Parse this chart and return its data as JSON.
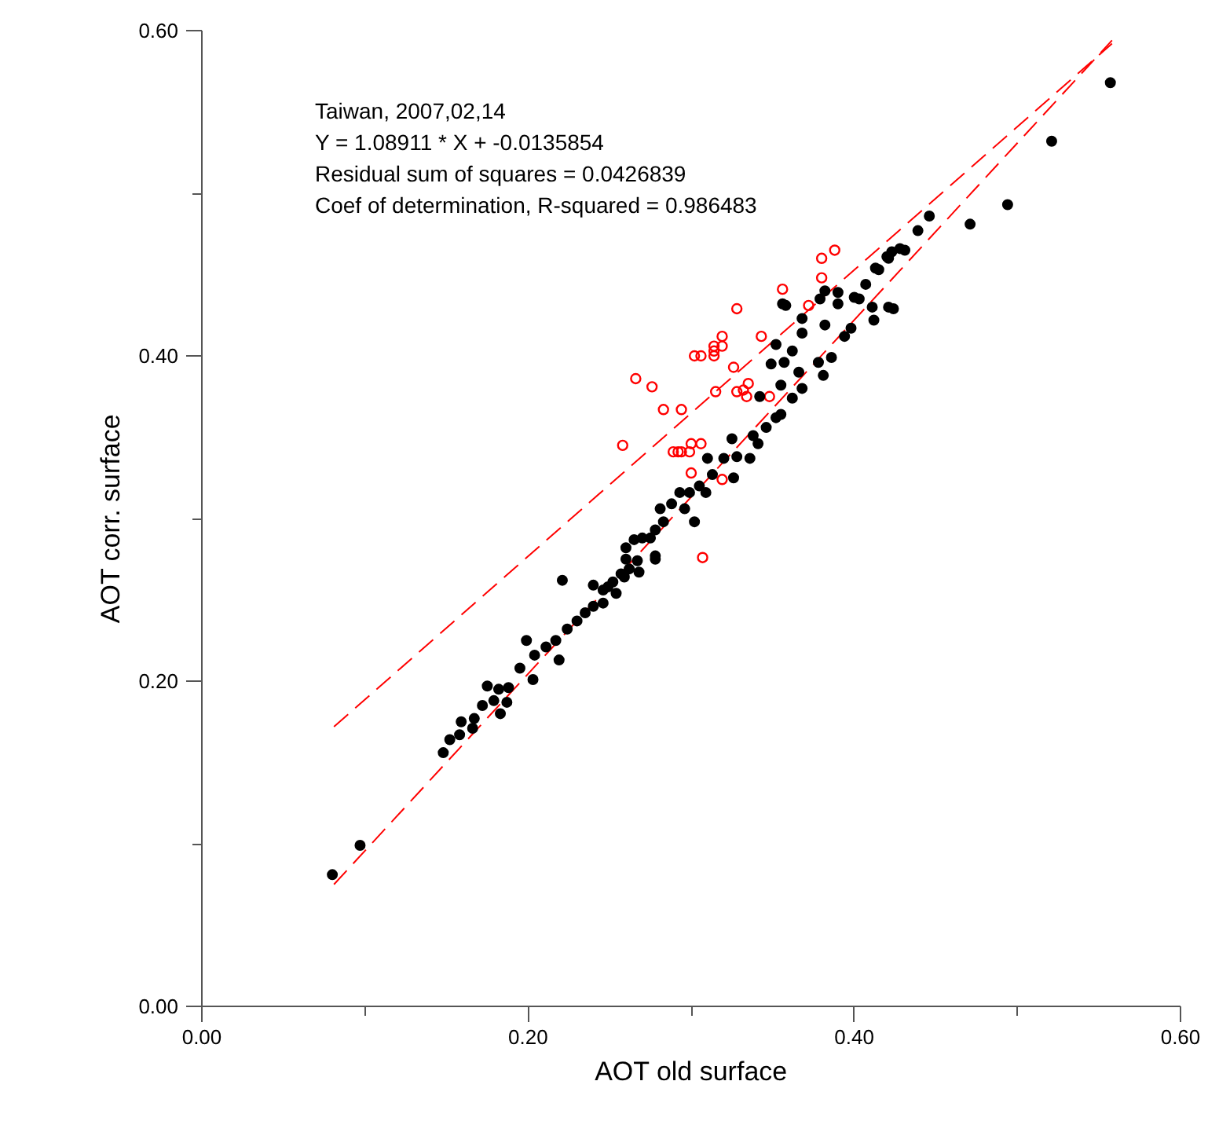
{
  "chart_data": {
    "type": "scatter",
    "xlabel": "AOT old surface",
    "ylabel": "AOT corr. surface",
    "annotations": [
      "Taiwan, 2007,02,14",
      "Y = 1.08911 * X + -0.0135854",
      "Residual sum of squares = 0.0426839",
      "Coef of determination, R-squared = 0.986483"
    ],
    "xlim": [
      0,
      0.6
    ],
    "ylim": [
      0,
      0.6
    ],
    "xticks": [
      {
        "value": 0,
        "label": "0.00"
      },
      {
        "value": 0.1,
        "label": null
      },
      {
        "value": 0.2,
        "label": "0.20"
      },
      {
        "value": 0.3,
        "label": null
      },
      {
        "value": 0.4,
        "label": "0.40"
      },
      {
        "value": 0.5,
        "label": null
      },
      {
        "value": 0.6,
        "label": "0.60"
      }
    ],
    "yticks": [
      {
        "value": 0,
        "label": "0.00"
      },
      {
        "value": 0.1,
        "label": null
      },
      {
        "value": 0.2,
        "label": "0.20"
      },
      {
        "value": 0.3,
        "label": null
      },
      {
        "value": 0.4,
        "label": "0.40"
      },
      {
        "value": 0.5,
        "label": null
      },
      {
        "value": 0.6,
        "label": "0.60"
      }
    ],
    "grid": false,
    "series": [
      {
        "type": "line",
        "color": "#ff0000",
        "line_style": "dashed",
        "marker": "none",
        "x": [
          0.081,
          0.558
        ],
        "values": [
          0.172,
          0.592
        ]
      },
      {
        "type": "line",
        "color": "#ff0000",
        "line_style": "dashed",
        "marker": "none",
        "x": [
          0.081,
          0.558
        ],
        "values": [
          0.075,
          0.594
        ]
      },
      {
        "color": "#ff0000",
        "marker": "circle_open",
        "x": [
          0.388,
          0.38,
          0.38,
          0.356,
          0.328,
          0.372,
          0.343,
          0.319,
          0.314,
          0.319,
          0.314,
          0.314,
          0.302,
          0.306,
          0.266,
          0.276,
          0.326,
          0.315,
          0.328,
          0.332,
          0.335,
          0.334,
          0.348,
          0.283,
          0.294,
          0.258,
          0.3,
          0.306,
          0.289,
          0.292,
          0.294,
          0.299,
          0.3,
          0.319,
          0.307
        ],
        "values": [
          0.465,
          0.46,
          0.448,
          0.441,
          0.429,
          0.431,
          0.412,
          0.412,
          0.406,
          0.406,
          0.403,
          0.4,
          0.4,
          0.4,
          0.386,
          0.381,
          0.393,
          0.378,
          0.378,
          0.379,
          0.383,
          0.375,
          0.375,
          0.367,
          0.367,
          0.345,
          0.346,
          0.346,
          0.341,
          0.341,
          0.341,
          0.341,
          0.328,
          0.324,
          0.276
        ]
      },
      {
        "color": "#000000",
        "marker": "circle",
        "x": [
          0.557,
          0.521,
          0.494,
          0.471,
          0.446,
          0.439,
          0.431,
          0.423,
          0.421,
          0.415,
          0.424,
          0.411,
          0.403,
          0.382,
          0.39,
          0.358,
          0.428,
          0.42,
          0.413,
          0.421,
          0.412,
          0.4,
          0.407,
          0.39,
          0.379,
          0.368,
          0.356,
          0.368,
          0.382,
          0.394,
          0.398,
          0.386,
          0.378,
          0.352,
          0.357,
          0.349,
          0.362,
          0.381,
          0.366,
          0.355,
          0.368,
          0.362,
          0.342,
          0.355,
          0.352,
          0.346,
          0.338,
          0.341,
          0.325,
          0.336,
          0.328,
          0.32,
          0.31,
          0.326,
          0.313,
          0.305,
          0.309,
          0.299,
          0.293,
          0.302,
          0.296,
          0.288,
          0.281,
          0.283,
          0.278,
          0.275,
          0.27,
          0.265,
          0.26,
          0.278,
          0.267,
          0.262,
          0.257,
          0.252,
          0.221,
          0.24,
          0.246,
          0.08,
          0.097,
          0.148,
          0.152,
          0.158,
          0.159,
          0.166,
          0.167,
          0.175,
          0.172,
          0.179,
          0.183,
          0.182,
          0.187,
          0.188,
          0.195,
          0.199,
          0.203,
          0.204,
          0.211,
          0.217,
          0.219,
          0.224,
          0.23,
          0.235,
          0.24,
          0.246,
          0.249,
          0.254,
          0.259,
          0.26,
          0.268,
          0.278
        ],
        "values": [
          0.568,
          0.532,
          0.493,
          0.481,
          0.486,
          0.477,
          0.465,
          0.464,
          0.46,
          0.453,
          0.429,
          0.43,
          0.435,
          0.44,
          0.439,
          0.431,
          0.466,
          0.461,
          0.454,
          0.43,
          0.422,
          0.436,
          0.444,
          0.432,
          0.435,
          0.423,
          0.432,
          0.414,
          0.419,
          0.412,
          0.417,
          0.399,
          0.396,
          0.407,
          0.396,
          0.395,
          0.403,
          0.388,
          0.39,
          0.382,
          0.38,
          0.374,
          0.375,
          0.364,
          0.362,
          0.356,
          0.351,
          0.346,
          0.349,
          0.337,
          0.338,
          0.337,
          0.337,
          0.325,
          0.327,
          0.32,
          0.316,
          0.316,
          0.316,
          0.298,
          0.306,
          0.309,
          0.306,
          0.298,
          0.293,
          0.288,
          0.288,
          0.287,
          0.282,
          0.277,
          0.274,
          0.269,
          0.266,
          0.261,
          0.262,
          0.259,
          0.256,
          0.081,
          0.099,
          0.156,
          0.164,
          0.167,
          0.175,
          0.171,
          0.177,
          0.197,
          0.185,
          0.188,
          0.18,
          0.195,
          0.187,
          0.196,
          0.208,
          0.225,
          0.201,
          0.216,
          0.221,
          0.225,
          0.213,
          0.232,
          0.237,
          0.242,
          0.246,
          0.248,
          0.258,
          0.254,
          0.264,
          0.275,
          0.267,
          0.275
        ]
      }
    ]
  }
}
